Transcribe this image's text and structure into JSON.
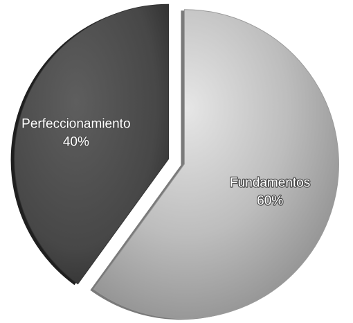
{
  "chart_data": {
    "type": "pie",
    "exploded": true,
    "style": "3d-shaded",
    "slices": [
      {
        "label": "Fundamentos",
        "value": 60,
        "value_label": "60%",
        "color": "#b8b8b8"
      },
      {
        "label": "Perfeccionamiento",
        "value": 40,
        "value_label": "40%",
        "color": "#4b4b4b"
      }
    ],
    "legend": "none",
    "colors": {
      "fundamentos_light": "#e6e6e6",
      "fundamentos_dark": "#8e8e8e",
      "perfeccionamiento_light": "#5e5e5e",
      "perfeccionamiento_dark": "#2c2c2c",
      "label_outline": "#4a4a4a"
    }
  }
}
